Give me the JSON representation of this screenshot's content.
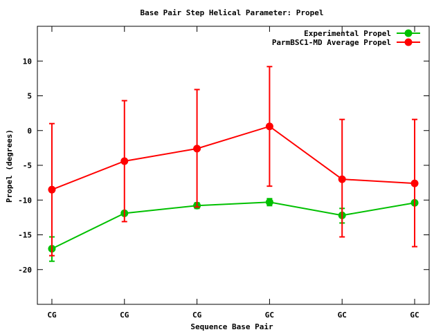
{
  "chart_data": {
    "type": "line",
    "title": "Base Pair Step Helical Parameter: Propel",
    "xlabel": "Sequence Base Pair",
    "ylabel": "Propel (degrees)",
    "categories": [
      "CG",
      "CG",
      "CG",
      "GC",
      "GC",
      "GC"
    ],
    "ylim": [
      -25,
      15
    ],
    "xlim": [
      -0.2,
      5.2
    ],
    "yticks": [
      -20,
      -15,
      -10,
      -5,
      0,
      5,
      10
    ],
    "legend_position": "top-right",
    "series": [
      {
        "name": "Experimental Propel",
        "color": "#00c000",
        "values": [
          -17.0,
          -11.9,
          -10.8,
          -10.3,
          -12.2,
          -10.4
        ],
        "err_low": [
          -18.8,
          -12.2,
          -11.2,
          -10.8,
          -13.3,
          -10.6
        ],
        "err_high": [
          -15.3,
          -11.6,
          -10.4,
          -9.8,
          -11.2,
          -10.2
        ]
      },
      {
        "name": "ParmBSC1-MD Average Propel",
        "color": "#ff0000",
        "values": [
          -8.5,
          -4.4,
          -2.6,
          0.6,
          -7.0,
          -7.6
        ],
        "err_low": [
          -18.0,
          -13.1,
          -11.0,
          -8.0,
          -15.3,
          -16.7
        ],
        "err_high": [
          1.0,
          4.3,
          5.9,
          9.2,
          1.6,
          1.6
        ]
      }
    ]
  }
}
